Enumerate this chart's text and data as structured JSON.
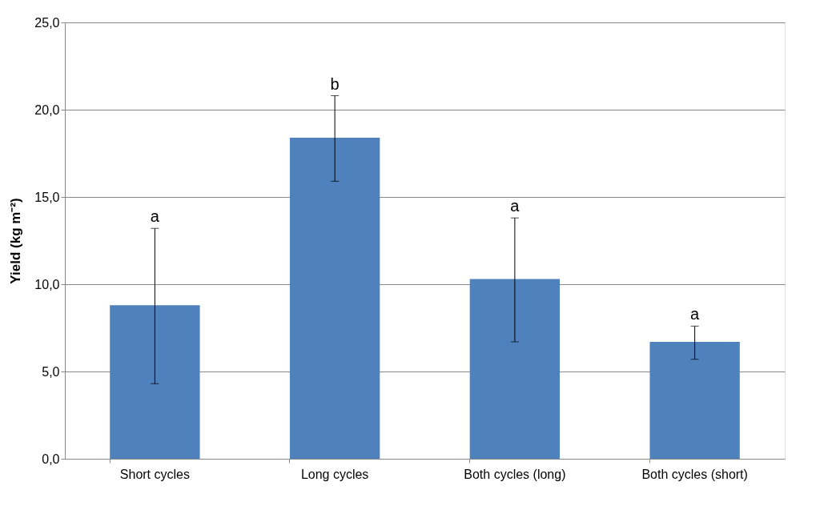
{
  "chart_data": {
    "type": "bar",
    "ylabel": "Yield (kg m⁻²)",
    "categories": [
      "Short cycles",
      "Long cycles",
      "Both cycles (long)",
      "Both cycles (short)"
    ],
    "series": [
      {
        "color": "#4f81bd",
        "values": [
          8.8,
          18.4,
          10.3,
          6.7
        ],
        "errors": [
          [
            4.3,
            13.2
          ],
          [
            15.9,
            20.8
          ],
          [
            6.7,
            13.8
          ],
          [
            5.7,
            7.6
          ]
        ]
      }
    ],
    "ylim": [
      0,
      25
    ],
    "yticks": [
      {
        "value": 0,
        "label": "0,0"
      },
      {
        "value": 5,
        "label": "5,0"
      },
      {
        "value": 10,
        "label": "10,0"
      },
      {
        "value": 15,
        "label": "15,0"
      },
      {
        "value": 20,
        "label": "20,0"
      },
      {
        "value": 25,
        "label": "25,0"
      }
    ],
    "grid": "y",
    "annotations": [
      {
        "text": "a",
        "x": "Short cycles",
        "y": 13.2
      },
      {
        "text": "b",
        "x": "Long cycles",
        "y": 20.8
      },
      {
        "text": "a",
        "x": "Both cycles (long)",
        "y": 13.8
      },
      {
        "text": "a",
        "x": "Both cycles (short)",
        "y": 7.6
      }
    ]
  }
}
